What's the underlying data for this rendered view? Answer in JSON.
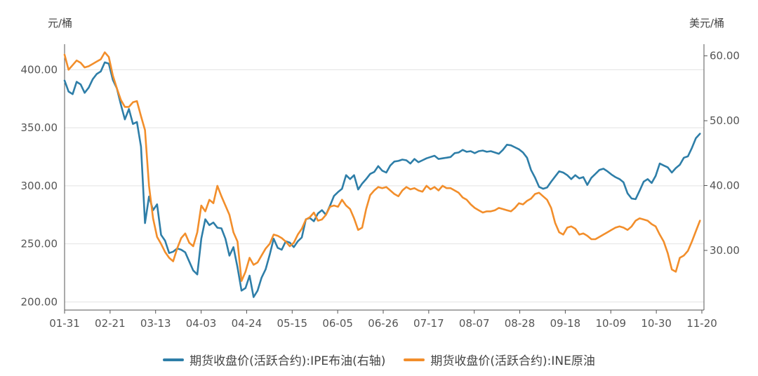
{
  "chart_data": {
    "type": "line",
    "left_axis_unit": "元/桶",
    "right_axis_unit": "美元/桶",
    "x_ticks": [
      "01-31",
      "02-21",
      "03-13",
      "04-03",
      "04-24",
      "05-15",
      "06-05",
      "06-26",
      "07-17",
      "08-07",
      "08-28",
      "09-18",
      "10-09",
      "10-30",
      "11-20"
    ],
    "y_left_ticks": [
      "200.00",
      "250.00",
      "300.00",
      "350.00",
      "400.00"
    ],
    "y_right_ticks": [
      "30.00",
      "40.00",
      "50.00",
      "60.00"
    ],
    "y_left_range": [
      193,
      422
    ],
    "y_right_range": [
      20.8,
      61.8
    ],
    "grid": true,
    "legend_position": "bottom",
    "series": [
      {
        "name": "期货收盘价(活跃合约):IPE布油(右轴)",
        "color": "#2e7ea8",
        "axis": "right",
        "points": [
          [
            0,
            56.2
          ],
          [
            1,
            54.5
          ],
          [
            2,
            54.1
          ],
          [
            3,
            56.0
          ],
          [
            4,
            55.6
          ],
          [
            5,
            54.3
          ],
          [
            6,
            55.1
          ],
          [
            7,
            56.4
          ],
          [
            8,
            57.2
          ],
          [
            9,
            57.6
          ],
          [
            10,
            59.0
          ],
          [
            11,
            58.8
          ],
          [
            12,
            56.3
          ],
          [
            13,
            55.0
          ],
          [
            14,
            52.5
          ],
          [
            15,
            50.2
          ],
          [
            16,
            51.8
          ],
          [
            17,
            49.5
          ],
          [
            18,
            49.8
          ],
          [
            19,
            46.0
          ],
          [
            20,
            34.2
          ],
          [
            21,
            38.3
          ],
          [
            22,
            36.2
          ],
          [
            23,
            37.1
          ],
          [
            24,
            32.4
          ],
          [
            25,
            31.5
          ],
          [
            26,
            29.6
          ],
          [
            27,
            29.8
          ],
          [
            28,
            30.3
          ],
          [
            29,
            30.1
          ],
          [
            30,
            29.7
          ],
          [
            31,
            28.3
          ],
          [
            32,
            26.9
          ],
          [
            33,
            26.3
          ],
          [
            34,
            31.8
          ],
          [
            35,
            34.8
          ],
          [
            36,
            33.9
          ],
          [
            37,
            34.3
          ],
          [
            38,
            33.5
          ],
          [
            39,
            33.4
          ],
          [
            40,
            31.8
          ],
          [
            41,
            29.2
          ],
          [
            42,
            30.5
          ],
          [
            43,
            27.4
          ],
          [
            44,
            23.8
          ],
          [
            45,
            24.2
          ],
          [
            46,
            26.1
          ],
          [
            47,
            22.8
          ],
          [
            48,
            23.8
          ],
          [
            49,
            25.8
          ],
          [
            50,
            27.1
          ],
          [
            51,
            29.3
          ],
          [
            52,
            31.8
          ],
          [
            53,
            30.4
          ],
          [
            54,
            30.1
          ],
          [
            55,
            31.4
          ],
          [
            56,
            31.2
          ],
          [
            57,
            30.5
          ],
          [
            58,
            31.4
          ],
          [
            59,
            32.0
          ],
          [
            60,
            34.8
          ],
          [
            61,
            35.0
          ],
          [
            62,
            34.5
          ],
          [
            63,
            35.7
          ],
          [
            64,
            36.2
          ],
          [
            65,
            35.5
          ],
          [
            66,
            36.9
          ],
          [
            67,
            38.4
          ],
          [
            68,
            39.0
          ],
          [
            69,
            39.5
          ],
          [
            70,
            41.6
          ],
          [
            71,
            41.0
          ],
          [
            72,
            41.6
          ],
          [
            73,
            39.4
          ],
          [
            74,
            40.3
          ],
          [
            75,
            41.0
          ],
          [
            76,
            41.8
          ],
          [
            77,
            42.1
          ],
          [
            78,
            43.0
          ],
          [
            79,
            42.3
          ],
          [
            80,
            42.0
          ],
          [
            81,
            43.1
          ],
          [
            82,
            43.7
          ],
          [
            83,
            43.8
          ],
          [
            84,
            44.0
          ],
          [
            85,
            43.9
          ],
          [
            86,
            43.4
          ],
          [
            87,
            44.1
          ],
          [
            88,
            43.6
          ],
          [
            89,
            43.9
          ],
          [
            90,
            44.2
          ],
          [
            91,
            44.4
          ],
          [
            92,
            44.6
          ],
          [
            93,
            44.1
          ],
          [
            94,
            44.2
          ],
          [
            95,
            44.3
          ],
          [
            96,
            44.4
          ],
          [
            97,
            45.0
          ],
          [
            98,
            45.1
          ],
          [
            99,
            45.5
          ],
          [
            100,
            45.2
          ],
          [
            101,
            45.3
          ],
          [
            102,
            45.0
          ],
          [
            103,
            45.3
          ],
          [
            104,
            45.4
          ],
          [
            105,
            45.2
          ],
          [
            106,
            45.3
          ],
          [
            107,
            45.1
          ],
          [
            108,
            44.9
          ],
          [
            109,
            45.5
          ],
          [
            110,
            46.3
          ],
          [
            111,
            46.2
          ],
          [
            112,
            45.9
          ],
          [
            113,
            45.6
          ],
          [
            114,
            45.1
          ],
          [
            115,
            44.3
          ],
          [
            116,
            42.4
          ],
          [
            117,
            41.2
          ],
          [
            118,
            39.8
          ],
          [
            119,
            39.5
          ],
          [
            120,
            39.7
          ],
          [
            121,
            40.6
          ],
          [
            122,
            41.4
          ],
          [
            123,
            42.2
          ],
          [
            124,
            42.0
          ],
          [
            125,
            41.6
          ],
          [
            126,
            41.0
          ],
          [
            127,
            41.6
          ],
          [
            128,
            41.1
          ],
          [
            129,
            41.3
          ],
          [
            130,
            40.1
          ],
          [
            131,
            41.2
          ],
          [
            132,
            41.8
          ],
          [
            133,
            42.4
          ],
          [
            134,
            42.6
          ],
          [
            135,
            42.2
          ],
          [
            136,
            41.7
          ],
          [
            137,
            41.3
          ],
          [
            138,
            41.0
          ],
          [
            139,
            40.5
          ],
          [
            140,
            38.8
          ],
          [
            141,
            38.0
          ],
          [
            142,
            37.9
          ],
          [
            143,
            39.2
          ],
          [
            144,
            40.6
          ],
          [
            145,
            41.0
          ],
          [
            146,
            40.4
          ],
          [
            147,
            41.5
          ],
          [
            148,
            43.4
          ],
          [
            149,
            43.1
          ],
          [
            150,
            42.8
          ],
          [
            151,
            42.0
          ],
          [
            152,
            42.7
          ],
          [
            153,
            43.2
          ],
          [
            154,
            44.3
          ],
          [
            155,
            44.5
          ],
          [
            156,
            45.8
          ],
          [
            157,
            47.3
          ],
          [
            158,
            48.0
          ]
        ]
      },
      {
        "name": "期货收盘价(活跃合约):INE原油",
        "color": "#f28e2b",
        "axis": "left",
        "points": [
          [
            0,
            413
          ],
          [
            1,
            400
          ],
          [
            2,
            404
          ],
          [
            3,
            408
          ],
          [
            4,
            406
          ],
          [
            5,
            402
          ],
          [
            6,
            403
          ],
          [
            7,
            405
          ],
          [
            8,
            407
          ],
          [
            9,
            409
          ],
          [
            10,
            415
          ],
          [
            11,
            411
          ],
          [
            12,
            395
          ],
          [
            13,
            384
          ],
          [
            14,
            374
          ],
          [
            15,
            368
          ],
          [
            16,
            368
          ],
          [
            17,
            372
          ],
          [
            18,
            373
          ],
          [
            19,
            360
          ],
          [
            20,
            348
          ],
          [
            21,
            300
          ],
          [
            22,
            272
          ],
          [
            23,
            256
          ],
          [
            24,
            250
          ],
          [
            25,
            243
          ],
          [
            26,
            238
          ],
          [
            27,
            235
          ],
          [
            28,
            246
          ],
          [
            29,
            255
          ],
          [
            30,
            259
          ],
          [
            31,
            251
          ],
          [
            32,
            248
          ],
          [
            33,
            260
          ],
          [
            34,
            283
          ],
          [
            35,
            278
          ],
          [
            36,
            288
          ],
          [
            37,
            285
          ],
          [
            38,
            300
          ],
          [
            39,
            291
          ],
          [
            40,
            283
          ],
          [
            41,
            275
          ],
          [
            42,
            260
          ],
          [
            43,
            252
          ],
          [
            44,
            218
          ],
          [
            45,
            226
          ],
          [
            46,
            238
          ],
          [
            47,
            232
          ],
          [
            48,
            234
          ],
          [
            49,
            240
          ],
          [
            50,
            246
          ],
          [
            51,
            250
          ],
          [
            52,
            258
          ],
          [
            53,
            257
          ],
          [
            54,
            255
          ],
          [
            55,
            252
          ],
          [
            56,
            248
          ],
          [
            57,
            251
          ],
          [
            58,
            258
          ],
          [
            59,
            263
          ],
          [
            60,
            271
          ],
          [
            61,
            273
          ],
          [
            62,
            277
          ],
          [
            63,
            270
          ],
          [
            64,
            271
          ],
          [
            65,
            275
          ],
          [
            66,
            282
          ],
          [
            67,
            283
          ],
          [
            68,
            282
          ],
          [
            69,
            288
          ],
          [
            70,
            283
          ],
          [
            71,
            280
          ],
          [
            72,
            272
          ],
          [
            73,
            262
          ],
          [
            74,
            264
          ],
          [
            75,
            280
          ],
          [
            76,
            292
          ],
          [
            77,
            296
          ],
          [
            78,
            299
          ],
          [
            79,
            298
          ],
          [
            80,
            299
          ],
          [
            81,
            296
          ],
          [
            82,
            293
          ],
          [
            83,
            291
          ],
          [
            84,
            296
          ],
          [
            85,
            299
          ],
          [
            86,
            297
          ],
          [
            87,
            298
          ],
          [
            88,
            296
          ],
          [
            89,
            295
          ],
          [
            90,
            300
          ],
          [
            91,
            297
          ],
          [
            92,
            299
          ],
          [
            93,
            296
          ],
          [
            94,
            300
          ],
          [
            95,
            298
          ],
          [
            96,
            298
          ],
          [
            97,
            296
          ],
          [
            98,
            294
          ],
          [
            99,
            290
          ],
          [
            100,
            288
          ],
          [
            101,
            284
          ],
          [
            102,
            281
          ],
          [
            103,
            279
          ],
          [
            104,
            277
          ],
          [
            105,
            278
          ],
          [
            106,
            278
          ],
          [
            107,
            279
          ],
          [
            108,
            281
          ],
          [
            109,
            280
          ],
          [
            110,
            279
          ],
          [
            111,
            278
          ],
          [
            112,
            281
          ],
          [
            113,
            285
          ],
          [
            114,
            284
          ],
          [
            115,
            287
          ],
          [
            116,
            289
          ],
          [
            117,
            293
          ],
          [
            118,
            294
          ],
          [
            119,
            291
          ],
          [
            120,
            288
          ],
          [
            121,
            281
          ],
          [
            122,
            268
          ],
          [
            123,
            260
          ],
          [
            124,
            258
          ],
          [
            125,
            264
          ],
          [
            126,
            265
          ],
          [
            127,
            263
          ],
          [
            128,
            258
          ],
          [
            129,
            259
          ],
          [
            130,
            257
          ],
          [
            131,
            254
          ],
          [
            132,
            254
          ],
          [
            133,
            256
          ],
          [
            134,
            258
          ],
          [
            135,
            260
          ],
          [
            136,
            262
          ],
          [
            137,
            264
          ],
          [
            138,
            265
          ],
          [
            139,
            264
          ],
          [
            140,
            262
          ],
          [
            141,
            265
          ],
          [
            142,
            270
          ],
          [
            143,
            272
          ],
          [
            144,
            271
          ],
          [
            145,
            270
          ],
          [
            146,
            267
          ],
          [
            147,
            265
          ],
          [
            148,
            258
          ],
          [
            149,
            252
          ],
          [
            150,
            242
          ],
          [
            151,
            228
          ],
          [
            152,
            226
          ],
          [
            153,
            238
          ],
          [
            154,
            240
          ],
          [
            155,
            244
          ],
          [
            156,
            252
          ],
          [
            157,
            261
          ],
          [
            158,
            270
          ]
        ]
      }
    ]
  },
  "legend": {
    "series_1_label": "期货收盘价(活跃合约):IPE布油(右轴)",
    "series_2_label": "期货收盘价(活跃合约):INE原油",
    "series_1_color": "#2e7ea8",
    "series_2_color": "#f28e2b"
  }
}
